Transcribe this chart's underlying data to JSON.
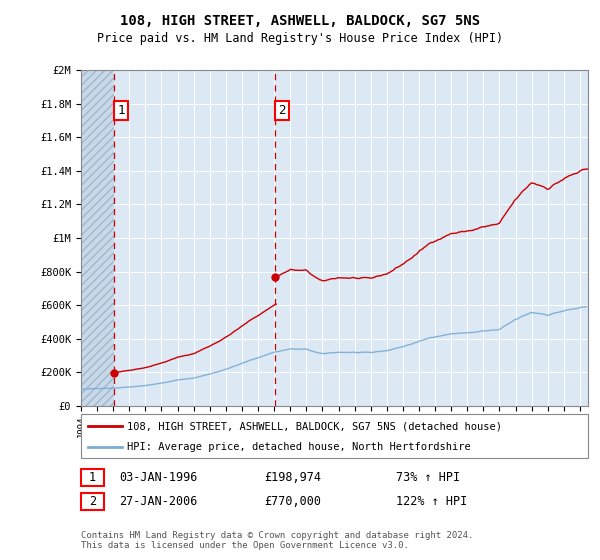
{
  "title": "108, HIGH STREET, ASHWELL, BALDOCK, SG7 5NS",
  "subtitle": "Price paid vs. HM Land Registry's House Price Index (HPI)",
  "ylabel_ticks": [
    "£0",
    "£200K",
    "£400K",
    "£600K",
    "£800K",
    "£1M",
    "£1.2M",
    "£1.4M",
    "£1.6M",
    "£1.8M",
    "£2M"
  ],
  "ytick_vals": [
    0,
    200000,
    400000,
    600000,
    800000,
    1000000,
    1200000,
    1400000,
    1600000,
    1800000,
    2000000
  ],
  "ylim": [
    0,
    2000000
  ],
  "xlim_start": 1994.0,
  "xlim_end": 2025.5,
  "hpi_color": "#7aadd4",
  "price_color": "#cc0000",
  "purchase1_year": 1996.04,
  "purchase1_price": 198974,
  "purchase2_year": 2006.07,
  "purchase2_price": 770000,
  "legend_property": "108, HIGH STREET, ASHWELL, BALDOCK, SG7 5NS (detached house)",
  "legend_hpi": "HPI: Average price, detached house, North Hertfordshire",
  "annotation1_date": "03-JAN-1996",
  "annotation1_price": "£198,974",
  "annotation1_pct": "73% ↑ HPI",
  "annotation2_date": "27-JAN-2006",
  "annotation2_price": "£770,000",
  "annotation2_pct": "122% ↑ HPI",
  "footer": "Contains HM Land Registry data © Crown copyright and database right 2024.\nThis data is licensed under the Open Government Licence v3.0.",
  "bg_hatch_color": "#c8d8e8",
  "bg_plain_color": "#dce8f4",
  "grid_color": "#b8c8d8",
  "white_grid": "#ffffff"
}
